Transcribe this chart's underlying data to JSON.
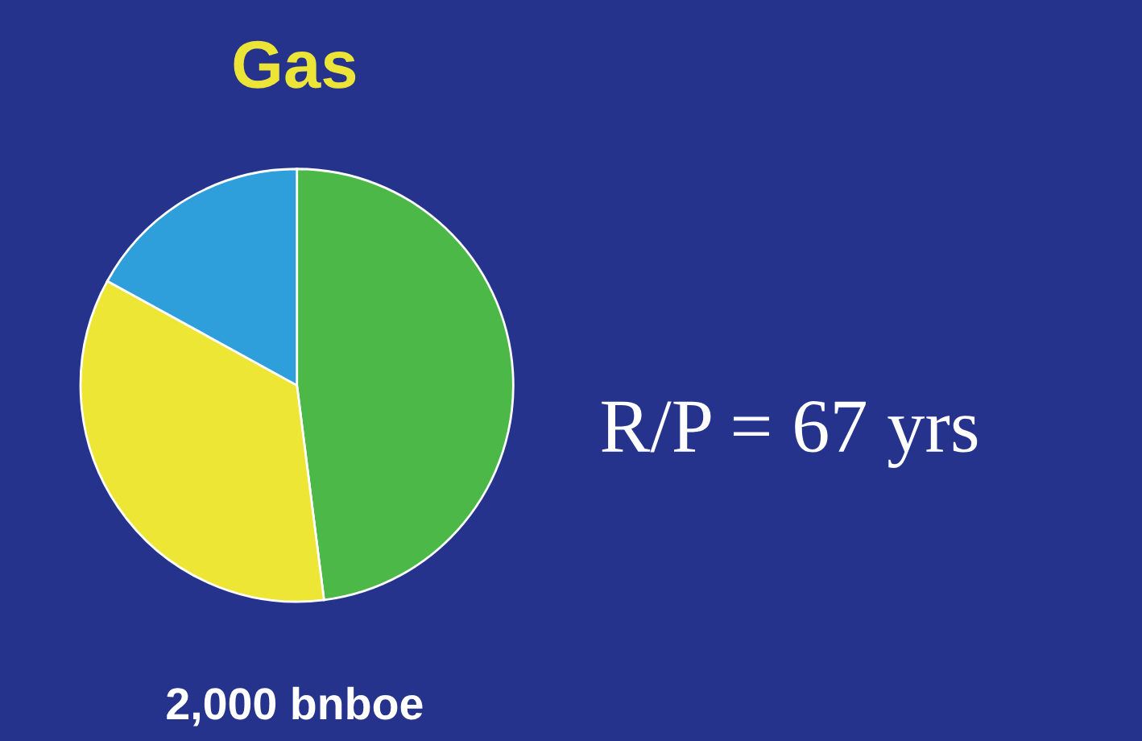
{
  "chart_data": {
    "type": "pie",
    "title": "Gas",
    "categories": [
      null,
      null,
      null
    ],
    "values": [
      48,
      35,
      17
    ],
    "colors": [
      "#4cb848",
      "#ede634",
      "#2f9fdc"
    ],
    "annotations": [
      "2,000 bnboe",
      "R/P = 67 yrs"
    ]
  }
}
